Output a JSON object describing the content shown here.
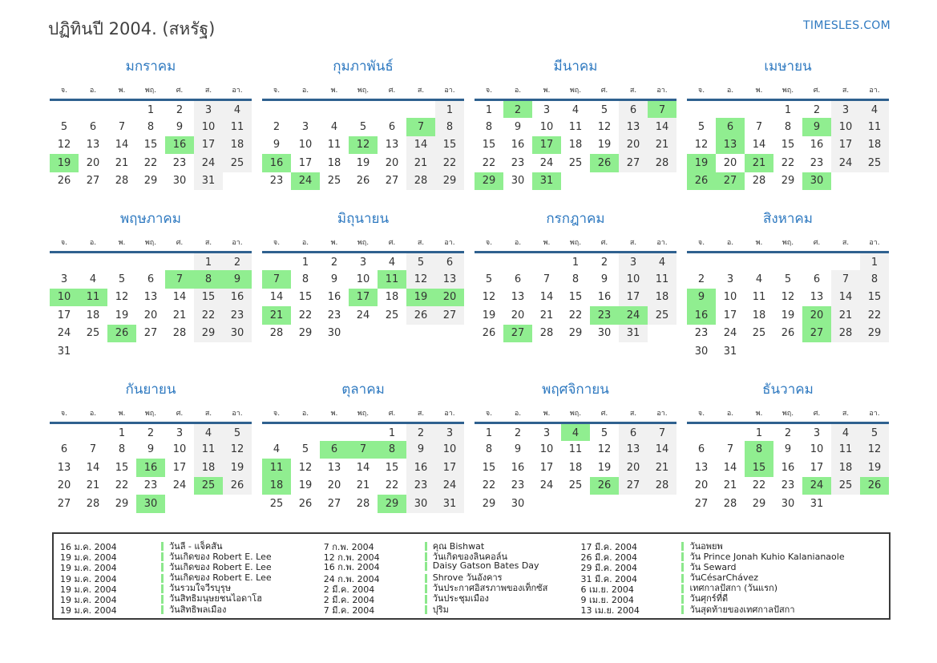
{
  "page": {
    "title": "ปฏิทินปี 2004. (สหรัฐ)",
    "site": "TIMESLES.COM"
  },
  "weekday_headers": [
    "จ.",
    "อ.",
    "พ.",
    "พฤ.",
    "ศ.",
    "ส.",
    "อา."
  ],
  "months": [
    {
      "name": "มกราคม",
      "start": 3,
      "days": 31,
      "holidays": [
        16,
        19
      ]
    },
    {
      "name": "กุมภาพันธ์",
      "start": 6,
      "days": 29,
      "holidays": [
        7,
        12,
        16,
        24
      ]
    },
    {
      "name": "มีนาคม",
      "start": 0,
      "days": 31,
      "holidays": [
        2,
        7,
        17,
        26,
        29,
        31
      ]
    },
    {
      "name": "เมษายน",
      "start": 3,
      "days": 30,
      "holidays": [
        6,
        9,
        13,
        19,
        21,
        26,
        27,
        30
      ]
    },
    {
      "name": "พฤษภาคม",
      "start": 5,
      "days": 31,
      "holidays": [
        7,
        8,
        9,
        10,
        11,
        26
      ]
    },
    {
      "name": "มิถุนายน",
      "start": 1,
      "days": 30,
      "holidays": [
        7,
        11,
        17,
        19,
        20,
        21
      ]
    },
    {
      "name": "กรกฎาคม",
      "start": 3,
      "days": 31,
      "holidays": [
        23,
        24,
        27
      ]
    },
    {
      "name": "สิงหาคม",
      "start": 6,
      "days": 31,
      "holidays": [
        9,
        16,
        20,
        27
      ]
    },
    {
      "name": "กันยายน",
      "start": 2,
      "days": 30,
      "holidays": [
        16,
        25,
        30
      ]
    },
    {
      "name": "ตุลาคม",
      "start": 4,
      "days": 31,
      "holidays": [
        6,
        7,
        8,
        11,
        18,
        29
      ]
    },
    {
      "name": "พฤศจิกายน",
      "start": 0,
      "days": 30,
      "holidays": [
        4,
        26
      ]
    },
    {
      "name": "ธันวาคม",
      "start": 2,
      "days": 31,
      "holidays": [
        8,
        15,
        24,
        26
      ]
    }
  ],
  "legend": {
    "columns": [
      [
        {
          "date": "16 ม.ค. 2004",
          "name": "วันลี - แจ็คสัน"
        },
        {
          "date": "19 ม.ค. 2004",
          "name": "วันเกิดของ Robert E. Lee"
        },
        {
          "date": "19 ม.ค. 2004",
          "name": "วันเกิดของ Robert E. Lee"
        },
        {
          "date": "19 ม.ค. 2004",
          "name": "วันเกิดของ Robert E. Lee"
        },
        {
          "date": "19 ม.ค. 2004",
          "name": "วันรวมใจวีรบุรุษ"
        },
        {
          "date": "19 ม.ค. 2004",
          "name": "วันสิทธิมนุษยชนไอดาโฮ"
        },
        {
          "date": "19 ม.ค. 2004",
          "name": "วันสิทธิพลเมือง"
        }
      ],
      [
        {
          "date": "7 ก.พ. 2004",
          "name": "คุณ Bishwat"
        },
        {
          "date": "12 ก.พ. 2004",
          "name": "วันเกิดของลินคอล์น"
        },
        {
          "date": "16 ก.พ. 2004",
          "name": "Daisy Gatson Bates Day"
        },
        {
          "date": "24 ก.พ. 2004",
          "name": "Shrove วันอังคาร"
        },
        {
          "date": "2 มี.ค. 2004",
          "name": "วันประกาศอิสรภาพของเท็กซัส"
        },
        {
          "date": "2 มี.ค. 2004",
          "name": "วันประชุมเมือง"
        },
        {
          "date": "7 มี.ค. 2004",
          "name": "ปุริม"
        }
      ],
      [
        {
          "date": "17 มี.ค. 2004",
          "name": "วันอพยพ"
        },
        {
          "date": "26 มี.ค. 2004",
          "name": "วัน Prince Jonah Kuhio Kalanianaole"
        },
        {
          "date": "29 มี.ค. 2004",
          "name": "วัน Seward"
        },
        {
          "date": "31 มี.ค. 2004",
          "name": "วันCésarChávez"
        },
        {
          "date": "6 เม.ย. 2004",
          "name": "เทศกาลปัสกา (วันแรก)"
        },
        {
          "date": "9 เม.ย. 2004",
          "name": "วันศุกร์ที่ดี"
        },
        {
          "date": "13 เม.ย. 2004",
          "name": "วันสุดท้ายของเทศกาลปัสกา"
        }
      ]
    ]
  },
  "colors": {
    "accent_blue": "#2e79c0",
    "holiday_green": "#90ee90",
    "weekend_gray": "#f1f1f1",
    "header_line": "#2f618f"
  }
}
